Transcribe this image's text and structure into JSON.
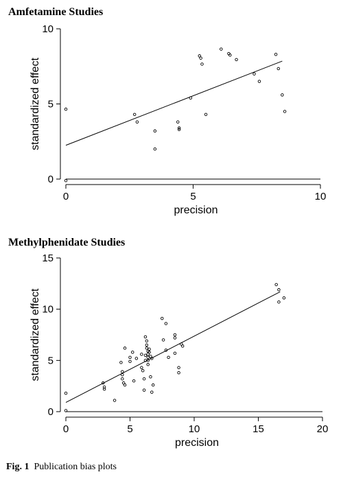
{
  "figure": {
    "caption_label": "Fig. 1",
    "caption_text": "Publication bias plots"
  },
  "chart_data": [
    {
      "type": "scatter",
      "title": "Amfetamine Studies",
      "xlabel": "precision",
      "ylabel": "standardized effect",
      "xlim": [
        0,
        10
      ],
      "ylim": [
        0,
        10
      ],
      "xticks": [
        0,
        5,
        10
      ],
      "yticks": [
        0,
        5,
        10
      ],
      "grid": false,
      "reference_line_y": 0,
      "fit_line": {
        "x": [
          0,
          8.5
        ],
        "y": [
          2.25,
          7.85
        ]
      },
      "points": [
        {
          "x": 0,
          "y": 4.65
        },
        {
          "x": 0,
          "y": -0.1
        },
        {
          "x": 2.7,
          "y": 4.3
        },
        {
          "x": 2.8,
          "y": 3.8
        },
        {
          "x": 3.5,
          "y": 3.2
        },
        {
          "x": 3.5,
          "y": 2.0
        },
        {
          "x": 4.4,
          "y": 3.8
        },
        {
          "x": 4.45,
          "y": 3.4
        },
        {
          "x": 4.45,
          "y": 3.3
        },
        {
          "x": 4.9,
          "y": 5.4
        },
        {
          "x": 5.25,
          "y": 8.2
        },
        {
          "x": 5.3,
          "y": 8.05
        },
        {
          "x": 5.35,
          "y": 7.65
        },
        {
          "x": 5.5,
          "y": 4.3
        },
        {
          "x": 6.1,
          "y": 8.65
        },
        {
          "x": 6.4,
          "y": 8.35
        },
        {
          "x": 6.45,
          "y": 8.25
        },
        {
          "x": 6.7,
          "y": 7.95
        },
        {
          "x": 7.4,
          "y": 7.0
        },
        {
          "x": 7.6,
          "y": 6.5
        },
        {
          "x": 8.25,
          "y": 8.3
        },
        {
          "x": 8.35,
          "y": 7.35
        },
        {
          "x": 8.5,
          "y": 5.6
        },
        {
          "x": 8.6,
          "y": 4.5
        }
      ]
    },
    {
      "type": "scatter",
      "title": "Methylphenidate Studies",
      "xlabel": "precision",
      "ylabel": "standardized effect",
      "xlim": [
        0,
        20
      ],
      "ylim": [
        0,
        15
      ],
      "xticks": [
        0,
        5,
        10,
        15,
        20
      ],
      "yticks": [
        0,
        5,
        10,
        15
      ],
      "grid": false,
      "reference_line_y": 0,
      "fit_line": {
        "x": [
          0,
          16.7
        ],
        "y": [
          0.9,
          11.7
        ]
      },
      "points": [
        {
          "x": 0,
          "y": 1.8
        },
        {
          "x": 0,
          "y": 0.1
        },
        {
          "x": 2.9,
          "y": 2.8
        },
        {
          "x": 3.0,
          "y": 2.4
        },
        {
          "x": 3.0,
          "y": 2.2
        },
        {
          "x": 3.8,
          "y": 1.1
        },
        {
          "x": 4.3,
          "y": 4.8
        },
        {
          "x": 4.4,
          "y": 3.9
        },
        {
          "x": 4.4,
          "y": 3.6
        },
        {
          "x": 4.4,
          "y": 3.2
        },
        {
          "x": 4.5,
          "y": 2.8
        },
        {
          "x": 4.6,
          "y": 2.6
        },
        {
          "x": 4.6,
          "y": 6.2
        },
        {
          "x": 5.0,
          "y": 5.3
        },
        {
          "x": 5.0,
          "y": 4.9
        },
        {
          "x": 5.2,
          "y": 5.8
        },
        {
          "x": 5.3,
          "y": 3.0
        },
        {
          "x": 5.5,
          "y": 5.2
        },
        {
          "x": 5.9,
          "y": 4.3
        },
        {
          "x": 5.9,
          "y": 5.6
        },
        {
          "x": 6.0,
          "y": 4.0
        },
        {
          "x": 6.1,
          "y": 2.1
        },
        {
          "x": 6.1,
          "y": 3.2
        },
        {
          "x": 6.2,
          "y": 5.0
        },
        {
          "x": 6.2,
          "y": 5.5
        },
        {
          "x": 6.2,
          "y": 7.3
        },
        {
          "x": 6.3,
          "y": 6.9
        },
        {
          "x": 6.3,
          "y": 6.5
        },
        {
          "x": 6.3,
          "y": 6.2
        },
        {
          "x": 6.4,
          "y": 5.9
        },
        {
          "x": 6.4,
          "y": 5.6
        },
        {
          "x": 6.4,
          "y": 5.3
        },
        {
          "x": 6.4,
          "y": 5.0
        },
        {
          "x": 6.4,
          "y": 4.6
        },
        {
          "x": 6.5,
          "y": 6.1
        },
        {
          "x": 6.5,
          "y": 5.8
        },
        {
          "x": 6.6,
          "y": 5.4
        },
        {
          "x": 6.6,
          "y": 3.4
        },
        {
          "x": 6.7,
          "y": 5.2
        },
        {
          "x": 6.7,
          "y": 1.9
        },
        {
          "x": 6.8,
          "y": 2.6
        },
        {
          "x": 7.5,
          "y": 9.1
        },
        {
          "x": 7.6,
          "y": 7.0
        },
        {
          "x": 7.8,
          "y": 6.0
        },
        {
          "x": 7.8,
          "y": 8.6
        },
        {
          "x": 8.0,
          "y": 5.3
        },
        {
          "x": 8.5,
          "y": 7.5
        },
        {
          "x": 8.5,
          "y": 7.2
        },
        {
          "x": 8.5,
          "y": 5.7
        },
        {
          "x": 8.8,
          "y": 4.3
        },
        {
          "x": 8.8,
          "y": 3.8
        },
        {
          "x": 9.0,
          "y": 6.6
        },
        {
          "x": 9.1,
          "y": 6.4
        },
        {
          "x": 16.4,
          "y": 12.4
        },
        {
          "x": 16.6,
          "y": 11.9
        },
        {
          "x": 16.6,
          "y": 10.7
        },
        {
          "x": 17.0,
          "y": 11.1
        }
      ]
    }
  ]
}
